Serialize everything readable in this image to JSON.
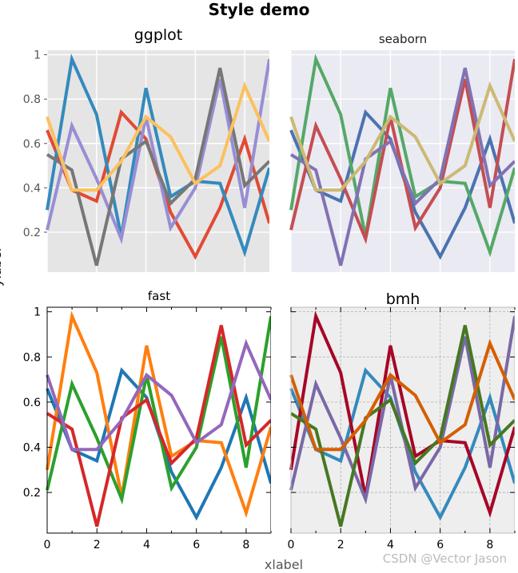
{
  "figure": {
    "suptitle": "Style demo",
    "supxlabel": "xlabel",
    "supylabel": "ylabel",
    "watermark": "CSDN @Vector Jason"
  },
  "chart_data": [
    {
      "type": "line",
      "title": "ggplot",
      "style": "ggplot",
      "xlim": [
        0,
        9
      ],
      "ylim": [
        0.02,
        1.02
      ],
      "xticks": [],
      "yticks": [
        0.2,
        0.4,
        0.6,
        0.8,
        1
      ],
      "ytick_labels": [
        "0.2",
        "0.4",
        "0.6",
        "0.8",
        "1"
      ],
      "background": "#e5e5e5",
      "grid": true,
      "x": [
        0,
        1,
        2,
        3,
        4,
        5,
        6,
        7,
        8,
        9
      ],
      "series": [
        {
          "color": "#E24A33",
          "values": [
            0.66,
            0.39,
            0.34,
            0.74,
            0.62,
            0.29,
            0.09,
            0.31,
            0.62,
            0.24
          ]
        },
        {
          "color": "#348ABD",
          "values": [
            0.3,
            0.98,
            0.73,
            0.18,
            0.85,
            0.36,
            0.43,
            0.42,
            0.11,
            0.49
          ]
        },
        {
          "color": "#988ED5",
          "values": [
            0.21,
            0.68,
            0.44,
            0.17,
            0.72,
            0.22,
            0.4,
            0.89,
            0.31,
            0.98
          ]
        },
        {
          "color": "#777777",
          "values": [
            0.55,
            0.48,
            0.05,
            0.53,
            0.61,
            0.33,
            0.44,
            0.94,
            0.41,
            0.52
          ]
        },
        {
          "color": "#FBC15E",
          "values": [
            0.72,
            0.39,
            0.39,
            0.52,
            0.72,
            0.63,
            0.42,
            0.5,
            0.86,
            0.61
          ]
        }
      ]
    },
    {
      "type": "line",
      "title": "seaborn",
      "style": "seaborn",
      "xlim": [
        0,
        9
      ],
      "ylim": [
        0.02,
        1.02
      ],
      "xticks": [],
      "yticks": [],
      "background": "#eaeaf2",
      "grid": true,
      "x": [
        0,
        1,
        2,
        3,
        4,
        5,
        6,
        7,
        8,
        9
      ],
      "series": [
        {
          "color": "#4C72B0",
          "values": [
            0.66,
            0.39,
            0.34,
            0.74,
            0.62,
            0.29,
            0.09,
            0.31,
            0.62,
            0.24
          ]
        },
        {
          "color": "#55A868",
          "values": [
            0.3,
            0.98,
            0.73,
            0.18,
            0.85,
            0.36,
            0.43,
            0.42,
            0.11,
            0.49
          ]
        },
        {
          "color": "#C44E52",
          "values": [
            0.21,
            0.68,
            0.44,
            0.17,
            0.72,
            0.22,
            0.4,
            0.89,
            0.31,
            0.98
          ]
        },
        {
          "color": "#8172B2",
          "values": [
            0.55,
            0.48,
            0.05,
            0.53,
            0.61,
            0.33,
            0.44,
            0.94,
            0.41,
            0.52
          ]
        },
        {
          "color": "#CCB974",
          "values": [
            0.72,
            0.39,
            0.39,
            0.52,
            0.72,
            0.63,
            0.42,
            0.5,
            0.86,
            0.61
          ]
        }
      ]
    },
    {
      "type": "line",
      "title": "fast",
      "style": "fast",
      "xlim": [
        0,
        9
      ],
      "ylim": [
        0.02,
        1.02
      ],
      "xticks": [
        0,
        2,
        4,
        6,
        8
      ],
      "xtick_labels": [
        "0",
        "2",
        "4",
        "6",
        "8"
      ],
      "yticks": [
        0.2,
        0.4,
        0.6,
        0.8,
        1
      ],
      "ytick_labels": [
        "0.2",
        "0.4",
        "0.6",
        "0.8",
        "1"
      ],
      "background": "#ffffff",
      "grid": false,
      "x": [
        0,
        1,
        2,
        3,
        4,
        5,
        6,
        7,
        8,
        9
      ],
      "series": [
        {
          "color": "#1f77b4",
          "values": [
            0.66,
            0.39,
            0.34,
            0.74,
            0.62,
            0.29,
            0.09,
            0.31,
            0.62,
            0.24
          ]
        },
        {
          "color": "#ff7f0e",
          "values": [
            0.3,
            0.98,
            0.73,
            0.18,
            0.85,
            0.36,
            0.43,
            0.42,
            0.11,
            0.49
          ]
        },
        {
          "color": "#2ca02c",
          "values": [
            0.21,
            0.68,
            0.44,
            0.17,
            0.72,
            0.22,
            0.4,
            0.89,
            0.31,
            0.98
          ]
        },
        {
          "color": "#d62728",
          "values": [
            0.55,
            0.48,
            0.05,
            0.53,
            0.61,
            0.33,
            0.44,
            0.94,
            0.41,
            0.52
          ]
        },
        {
          "color": "#9467bd",
          "values": [
            0.72,
            0.39,
            0.39,
            0.52,
            0.72,
            0.63,
            0.42,
            0.5,
            0.86,
            0.61
          ]
        }
      ]
    },
    {
      "type": "line",
      "title": "bmh",
      "style": "bmh",
      "xlim": [
        0,
        9
      ],
      "ylim": [
        0.02,
        1.02
      ],
      "xticks": [
        0,
        2,
        4,
        6,
        8
      ],
      "xtick_labels": [
        "0",
        "2",
        "4",
        "6",
        "8"
      ],
      "yticks": [],
      "background": "#eeeeee",
      "grid": true,
      "x": [
        0,
        1,
        2,
        3,
        4,
        5,
        6,
        7,
        8,
        9
      ],
      "series": [
        {
          "color": "#348ABD",
          "values": [
            0.66,
            0.39,
            0.34,
            0.74,
            0.62,
            0.29,
            0.09,
            0.31,
            0.62,
            0.24
          ]
        },
        {
          "color": "#A60628",
          "values": [
            0.3,
            0.98,
            0.73,
            0.18,
            0.85,
            0.36,
            0.43,
            0.42,
            0.11,
            0.49
          ]
        },
        {
          "color": "#7A68A6",
          "values": [
            0.21,
            0.68,
            0.44,
            0.17,
            0.72,
            0.22,
            0.4,
            0.89,
            0.31,
            0.98
          ]
        },
        {
          "color": "#467821",
          "values": [
            0.55,
            0.48,
            0.05,
            0.53,
            0.61,
            0.33,
            0.44,
            0.94,
            0.41,
            0.52
          ]
        },
        {
          "color": "#D55E00",
          "values": [
            0.72,
            0.39,
            0.39,
            0.52,
            0.72,
            0.63,
            0.42,
            0.5,
            0.86,
            0.61
          ]
        }
      ]
    }
  ]
}
